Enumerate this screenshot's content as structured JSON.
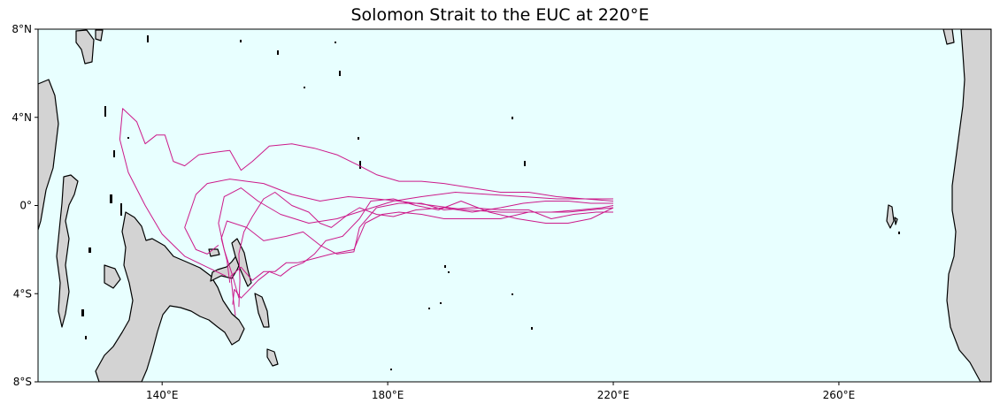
{
  "title": "Solomon Strait to the EUC at 220°E",
  "colors": {
    "ocean": "#e8ffff",
    "land": "#d3d3d3",
    "coast": "#000000",
    "trajectory": "#cc1a8a"
  },
  "chart_data": {
    "type": "map",
    "projection": "PlateCarree",
    "xlim": [
      118,
      287
    ],
    "ylim": [
      -8,
      8
    ],
    "x_ticks": [
      "140°E",
      "180°E",
      "220°E",
      "260°E"
    ],
    "y_ticks": [
      "8°N",
      "4°N",
      "0°",
      "4°S",
      "8°S"
    ],
    "x_tick_values": [
      140,
      180,
      220,
      260
    ],
    "y_tick_values": [
      8,
      4,
      0,
      -4,
      -8
    ],
    "series": [
      {
        "values": [
          [
            150.0,
            -1.8
          ],
          [
            148.0,
            -2.2
          ],
          [
            146.0,
            -2.0
          ],
          [
            144.0,
            -1.0
          ],
          [
            146.0,
            0.5
          ],
          [
            148.0,
            1.0
          ],
          [
            152.0,
            1.2
          ],
          [
            158.0,
            1.0
          ],
          [
            163.0,
            0.5
          ],
          [
            168.0,
            0.2
          ],
          [
            173.0,
            0.4
          ],
          [
            178.0,
            0.3
          ],
          [
            182.0,
            0.2
          ],
          [
            188.0,
            0.0
          ],
          [
            194.0,
            -0.2
          ],
          [
            200.0,
            -0.3
          ],
          [
            206.0,
            -0.3
          ],
          [
            212.0,
            -0.3
          ],
          [
            216.0,
            -0.2
          ],
          [
            220.0,
            -0.1
          ]
        ]
      },
      {
        "values": [
          [
            153.6,
            -4.2
          ],
          [
            152.5,
            -3.2
          ],
          [
            151.0,
            -2.0
          ],
          [
            150.0,
            -0.8
          ],
          [
            151.0,
            0.4
          ],
          [
            154.0,
            0.8
          ],
          [
            157.0,
            0.2
          ],
          [
            161.0,
            -0.4
          ],
          [
            166.0,
            -0.8
          ],
          [
            171.0,
            -0.6
          ],
          [
            176.0,
            -0.2
          ],
          [
            181.0,
            0.2
          ],
          [
            186.0,
            0.4
          ],
          [
            192.0,
            0.6
          ],
          [
            198.0,
            0.5
          ],
          [
            204.0,
            0.4
          ],
          [
            210.0,
            0.3
          ],
          [
            215.0,
            0.3
          ],
          [
            220.0,
            0.2
          ]
        ]
      },
      {
        "values": [
          [
            152.0,
            -3.5
          ],
          [
            151.5,
            -2.5
          ],
          [
            150.5,
            -1.5
          ],
          [
            151.5,
            -0.7
          ],
          [
            155.0,
            -1.0
          ],
          [
            158.0,
            -1.6
          ],
          [
            162.0,
            -1.4
          ],
          [
            165.0,
            -1.2
          ],
          [
            168.0,
            -1.8
          ],
          [
            171.0,
            -2.2
          ],
          [
            174.0,
            -2.1
          ],
          [
            175.0,
            -1.0
          ],
          [
            178.0,
            -0.1
          ],
          [
            182.0,
            0.1
          ],
          [
            186.0,
            0.1
          ],
          [
            190.0,
            -0.2
          ],
          [
            195.0,
            -0.1
          ],
          [
            200.0,
            -0.2
          ],
          [
            205.0,
            -0.2
          ],
          [
            209.0,
            -0.6
          ],
          [
            213.0,
            -0.4
          ],
          [
            217.0,
            -0.3
          ],
          [
            220.0,
            -0.3
          ]
        ]
      },
      {
        "values": [
          [
            153.0,
            -5.0
          ],
          [
            152.6,
            -4.2
          ],
          [
            152.2,
            -3.2
          ],
          [
            154.0,
            -2.8
          ],
          [
            156.0,
            -3.4
          ],
          [
            158.0,
            -3.0
          ],
          [
            160.0,
            -3.0
          ],
          [
            162.0,
            -2.6
          ],
          [
            164.0,
            -2.6
          ],
          [
            167.0,
            -2.4
          ],
          [
            170.0,
            -2.2
          ],
          [
            174.0,
            -2.0
          ],
          [
            176.0,
            -0.8
          ],
          [
            179.0,
            -0.4
          ],
          [
            182.0,
            -0.3
          ],
          [
            186.0,
            -0.4
          ],
          [
            190.0,
            -0.6
          ],
          [
            195.0,
            -0.6
          ],
          [
            200.0,
            -0.6
          ],
          [
            205.0,
            -0.3
          ],
          [
            209.0,
            -0.3
          ],
          [
            214.0,
            -0.2
          ],
          [
            218.0,
            -0.1
          ],
          [
            220.0,
            0.0
          ]
        ]
      },
      {
        "values": [
          [
            152.5,
            -4.5
          ],
          [
            152.8,
            -3.8
          ],
          [
            154.0,
            -4.2
          ],
          [
            155.5,
            -3.8
          ],
          [
            157.0,
            -3.4
          ],
          [
            159.0,
            -3.0
          ],
          [
            161.0,
            -3.2
          ],
          [
            163.0,
            -2.8
          ],
          [
            165.0,
            -2.6
          ],
          [
            167.0,
            -2.2
          ],
          [
            169.0,
            -1.6
          ],
          [
            172.0,
            -1.4
          ],
          [
            175.0,
            -0.6
          ],
          [
            177.0,
            0.2
          ],
          [
            181.0,
            0.3
          ],
          [
            185.0,
            0.0
          ],
          [
            189.0,
            -0.2
          ],
          [
            193.0,
            0.2
          ],
          [
            198.0,
            -0.3
          ],
          [
            203.0,
            -0.6
          ],
          [
            208.0,
            -0.8
          ],
          [
            212.0,
            -0.8
          ],
          [
            216.0,
            -0.6
          ],
          [
            220.0,
            -0.1
          ]
        ]
      },
      {
        "values": [
          [
            153.6,
            -4.6
          ],
          [
            153.8,
            -3.4
          ],
          [
            153.6,
            -2.2
          ],
          [
            154.5,
            -1.2
          ],
          [
            156.0,
            -0.5
          ],
          [
            158.0,
            0.3
          ],
          [
            160.0,
            0.6
          ],
          [
            163.0,
            0.0
          ],
          [
            166.0,
            -0.3
          ],
          [
            168.0,
            -0.8
          ],
          [
            170.0,
            -1.0
          ],
          [
            173.0,
            -0.4
          ],
          [
            175.0,
            -0.1
          ],
          [
            178.0,
            -0.4
          ],
          [
            181.0,
            -0.5
          ],
          [
            185.0,
            -0.2
          ],
          [
            190.0,
            -0.1
          ],
          [
            195.0,
            -0.3
          ],
          [
            200.0,
            -0.1
          ],
          [
            204.0,
            0.1
          ],
          [
            208.0,
            0.2
          ],
          [
            212.0,
            0.2
          ],
          [
            216.0,
            0.1
          ],
          [
            220.0,
            0.1
          ]
        ]
      },
      {
        "values": [
          [
            151.3,
            -3.2
          ],
          [
            148.0,
            -2.8
          ],
          [
            144.0,
            -2.3
          ],
          [
            140.0,
            -1.3
          ],
          [
            137.0,
            0.0
          ],
          [
            134.0,
            1.5
          ],
          [
            132.5,
            3.0
          ],
          [
            133.0,
            4.4
          ],
          [
            135.5,
            3.8
          ],
          [
            137.0,
            2.8
          ],
          [
            139.0,
            3.2
          ],
          [
            140.5,
            3.2
          ],
          [
            142.0,
            2.0
          ],
          [
            144.0,
            1.8
          ],
          [
            146.5,
            2.3
          ],
          [
            149.0,
            2.4
          ],
          [
            152.0,
            2.5
          ],
          [
            154.0,
            1.6
          ],
          [
            156.0,
            2.0
          ],
          [
            159.0,
            2.7
          ],
          [
            163.0,
            2.8
          ],
          [
            167.0,
            2.6
          ],
          [
            171.0,
            2.3
          ],
          [
            175.0,
            1.8
          ],
          [
            178.0,
            1.4
          ],
          [
            182.0,
            1.1
          ],
          [
            186.0,
            1.1
          ],
          [
            190.0,
            1.0
          ],
          [
            195.0,
            0.8
          ],
          [
            200.0,
            0.6
          ],
          [
            205.0,
            0.6
          ],
          [
            210.0,
            0.4
          ],
          [
            215.0,
            0.3
          ],
          [
            220.0,
            0.3
          ]
        ]
      }
    ]
  }
}
